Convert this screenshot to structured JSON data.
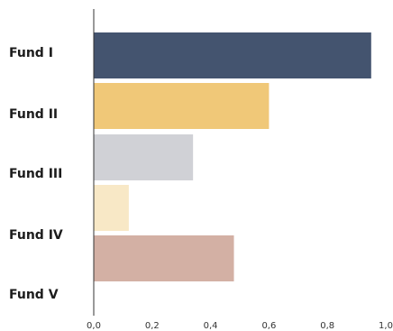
{
  "chart_data": {
    "type": "bar",
    "orientation": "horizontal",
    "categories": [
      "Fund I",
      "Fund II",
      "Fund III",
      "Fund IV",
      "Fund V"
    ],
    "bars": [
      {
        "category": "Fund I",
        "value": 0.95,
        "color": "#44546f"
      },
      {
        "category": "Fund II",
        "value": 0.6,
        "color": "#f0c878"
      },
      {
        "category": "Fund III",
        "value": 0.34,
        "color": "#d0d1d6"
      },
      {
        "category": "Fund IV",
        "value": 0.12,
        "color": "#f8e8c6"
      },
      {
        "category": "Fund V",
        "value": 0.48,
        "color": "#d3b0a4"
      }
    ],
    "xlim": [
      0.0,
      1.0
    ],
    "xticks": [
      "0,0",
      "0,2",
      "0,4",
      "0,6",
      "0,8",
      "1,0"
    ],
    "title": "",
    "xlabel": "",
    "ylabel": "",
    "grid": false,
    "legend": "none"
  }
}
